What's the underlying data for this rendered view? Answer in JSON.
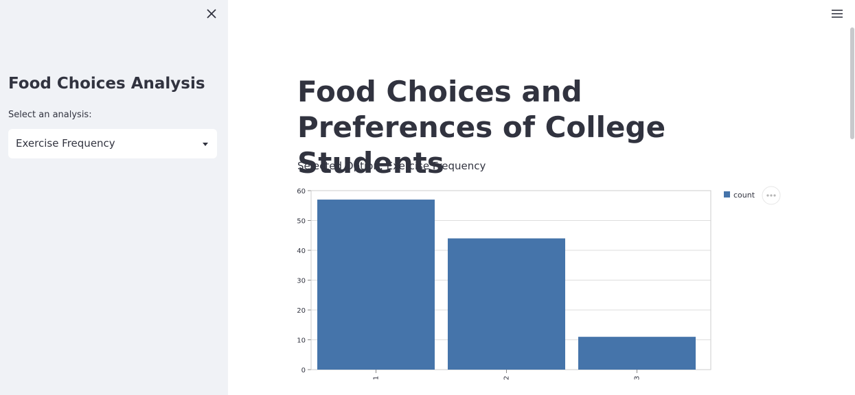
{
  "sidebar": {
    "title": "Food Choices Analysis",
    "select_label": "Select an analysis:",
    "selected_value": "Exercise Frequency"
  },
  "main": {
    "title": "Food Choices and Preferences of College Students",
    "selected_text": "Selected Option: Exercise Frequency"
  },
  "icons": {
    "close": "close-icon",
    "menu": "hamburger-menu-icon",
    "caret": "caret-down-icon",
    "chart_actions": "ellipsis-icon"
  },
  "colors": {
    "bar": "#4574aa",
    "sidebar_bg": "#f0f2f6",
    "text": "#31333f"
  },
  "chart_data": {
    "type": "bar",
    "categories": [
      "1",
      "2",
      "3"
    ],
    "series": [
      {
        "name": "count",
        "values": [
          57,
          44,
          11
        ]
      }
    ],
    "y_ticks": [
      0,
      10,
      20,
      30,
      40,
      50,
      60
    ],
    "ylim": [
      0,
      60
    ],
    "grid": true,
    "legend": "top-right"
  }
}
